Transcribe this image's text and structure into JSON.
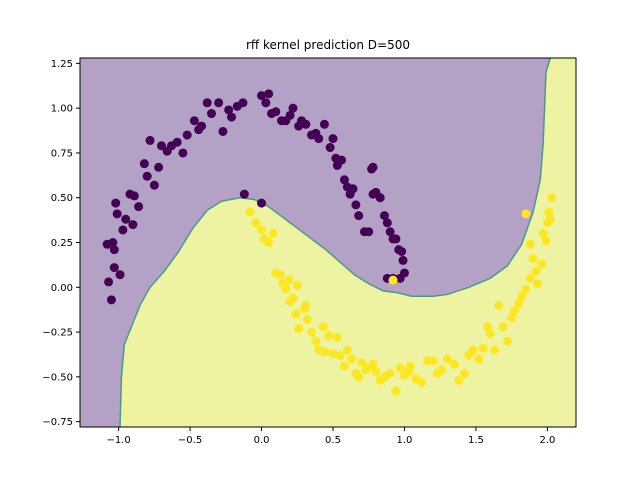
{
  "chart_data": {
    "type": "scatter",
    "title": "rff kernel prediction D=500",
    "xlabel": "",
    "ylabel": "",
    "xlim": [
      -1.27,
      2.2
    ],
    "ylim": [
      -0.78,
      1.28
    ],
    "xticks": [
      -1.0,
      -0.5,
      0.0,
      0.5,
      1.0,
      1.5,
      2.0
    ],
    "xtick_labels": [
      "−1.0",
      "−0.5",
      "0.0",
      "0.5",
      "1.0",
      "1.5",
      "2.0"
    ],
    "yticks": [
      -0.75,
      -0.5,
      -0.25,
      0.0,
      0.25,
      0.5,
      0.75,
      1.0,
      1.25
    ],
    "ytick_labels": [
      "−0.75",
      "−0.50",
      "−0.25",
      "0.00",
      "0.25",
      "0.50",
      "0.75",
      "1.00",
      "1.25"
    ],
    "grid": false,
    "colors": {
      "class_0_point": "#440154",
      "class_1_point": "#fde725",
      "class_0_region": "#b3a2c6",
      "class_1_region": "#edf3a1",
      "boundary": "#4a9a8a"
    },
    "decision_boundary": [
      [
        -0.99,
        -0.78
      ],
      [
        -0.98,
        -0.5
      ],
      [
        -0.96,
        -0.32
      ],
      [
        -0.9,
        -0.2
      ],
      [
        -0.85,
        -0.1
      ],
      [
        -0.78,
        0.0
      ],
      [
        -0.68,
        0.09
      ],
      [
        -0.58,
        0.2
      ],
      [
        -0.48,
        0.33
      ],
      [
        -0.38,
        0.43
      ],
      [
        -0.28,
        0.48
      ],
      [
        -0.15,
        0.5
      ],
      [
        -0.05,
        0.49
      ],
      [
        0.05,
        0.45
      ],
      [
        0.15,
        0.39
      ],
      [
        0.25,
        0.33
      ],
      [
        0.35,
        0.27
      ],
      [
        0.45,
        0.21
      ],
      [
        0.55,
        0.14
      ],
      [
        0.65,
        0.07
      ],
      [
        0.75,
        0.02
      ],
      [
        0.85,
        -0.02
      ],
      [
        0.95,
        -0.03
      ],
      [
        1.05,
        -0.05
      ],
      [
        1.2,
        -0.05
      ],
      [
        1.3,
        -0.04
      ],
      [
        1.45,
        0.0
      ],
      [
        1.6,
        0.05
      ],
      [
        1.72,
        0.12
      ],
      [
        1.82,
        0.24
      ],
      [
        1.9,
        0.42
      ],
      [
        1.95,
        0.6
      ],
      [
        1.97,
        0.8
      ],
      [
        1.98,
        1.0
      ],
      [
        1.99,
        1.2
      ],
      [
        2.02,
        1.28
      ]
    ],
    "series": [
      {
        "class": 0,
        "points": [
          [
            -1.08,
            0.24
          ],
          [
            -1.07,
            0.03
          ],
          [
            -1.05,
            -0.07
          ],
          [
            -1.04,
            0.25
          ],
          [
            -1.03,
            0.21
          ],
          [
            -1.02,
            0.47
          ],
          [
            -1.01,
            0.41
          ],
          [
            -1.03,
            0.11
          ],
          [
            -0.99,
            0.07
          ],
          [
            -0.97,
            0.32
          ],
          [
            -0.95,
            0.38
          ],
          [
            -0.92,
            0.52
          ],
          [
            -0.89,
            0.51
          ],
          [
            -0.9,
            0.35
          ],
          [
            -0.86,
            0.45
          ],
          [
            -0.82,
            0.69
          ],
          [
            -0.8,
            0.62
          ],
          [
            -0.78,
            0.82
          ],
          [
            -0.75,
            0.57
          ],
          [
            -0.72,
            0.67
          ],
          [
            -0.7,
            0.79
          ],
          [
            -0.66,
            0.76
          ],
          [
            -0.63,
            0.79
          ],
          [
            -0.59,
            0.81
          ],
          [
            -0.55,
            0.75
          ],
          [
            -0.52,
            0.85
          ],
          [
            -0.47,
            0.93
          ],
          [
            -0.44,
            0.88
          ],
          [
            -0.42,
            0.9
          ],
          [
            -0.38,
            1.03
          ],
          [
            -0.35,
            0.97
          ],
          [
            -0.3,
            1.03
          ],
          [
            -0.27,
            0.87
          ],
          [
            -0.23,
            0.99
          ],
          [
            -0.21,
            0.95
          ],
          [
            -0.17,
            1.01
          ],
          [
            -0.13,
            1.03
          ],
          [
            -0.12,
            0.52
          ],
          [
            0.0,
            1.07
          ],
          [
            0.03,
            1.03
          ],
          [
            0.05,
            1.08
          ],
          [
            0.07,
            0.97
          ],
          [
            0.1,
            0.98
          ],
          [
            0.14,
            0.93
          ],
          [
            0.17,
            0.93
          ],
          [
            0.2,
            0.96
          ],
          [
            0.22,
            1.0
          ],
          [
            0.26,
            0.9
          ],
          [
            0.28,
            0.93
          ],
          [
            0.31,
            0.91
          ],
          [
            0.35,
            0.85
          ],
          [
            0.38,
            0.86
          ],
          [
            0.4,
            0.83
          ],
          [
            0.44,
            0.91
          ],
          [
            0.48,
            0.78
          ],
          [
            0.5,
            0.83
          ],
          [
            0.52,
            0.72
          ],
          [
            0.53,
            0.68
          ],
          [
            0.56,
            0.71
          ],
          [
            0.58,
            0.6
          ],
          [
            0.6,
            0.56
          ],
          [
            0.62,
            0.52
          ],
          [
            0.64,
            0.55
          ],
          [
            0.66,
            0.46
          ],
          [
            0.68,
            0.4
          ],
          [
            0.72,
            0.31
          ],
          [
            0.75,
            0.31
          ],
          [
            0.78,
            0.52
          ],
          [
            0.8,
            0.53
          ],
          [
            0.83,
            0.5
          ],
          [
            0.86,
            0.4
          ],
          [
            0.88,
            0.36
          ],
          [
            0.9,
            0.31
          ],
          [
            0.92,
            0.27
          ],
          [
            0.94,
            0.27
          ],
          [
            0.96,
            0.21
          ],
          [
            0.98,
            0.2
          ],
          [
            0.99,
            0.15
          ],
          [
            1.0,
            0.08
          ],
          [
            0.97,
            0.05
          ],
          [
            0.92,
            0.05
          ],
          [
            0.88,
            0.05
          ],
          [
            0.0,
            0.47
          ],
          [
            0.78,
            0.67
          ],
          [
            0.77,
            0.66
          ]
        ]
      },
      {
        "class": 1,
        "points": [
          [
            -0.08,
            0.42
          ],
          [
            -0.04,
            0.36
          ],
          [
            0.0,
            0.32
          ],
          [
            0.02,
            0.27
          ],
          [
            0.05,
            0.25
          ],
          [
            0.08,
            0.3
          ],
          [
            0.1,
            0.08
          ],
          [
            0.13,
            0.07
          ],
          [
            0.15,
            0.02
          ],
          [
            0.17,
            -0.01
          ],
          [
            0.19,
            0.04
          ],
          [
            0.2,
            -0.08
          ],
          [
            0.22,
            -0.06
          ],
          [
            0.25,
            0.01
          ],
          [
            0.24,
            -0.15
          ],
          [
            0.26,
            -0.23
          ],
          [
            0.3,
            -0.12
          ],
          [
            0.32,
            -0.18
          ],
          [
            0.35,
            -0.25
          ],
          [
            0.38,
            -0.3
          ],
          [
            0.4,
            -0.35
          ],
          [
            0.43,
            -0.22
          ],
          [
            0.47,
            -0.27
          ],
          [
            0.5,
            -0.37
          ],
          [
            0.53,
            -0.28
          ],
          [
            0.55,
            -0.38
          ],
          [
            0.58,
            -0.44
          ],
          [
            0.6,
            -0.35
          ],
          [
            0.63,
            -0.4
          ],
          [
            0.66,
            -0.48
          ],
          [
            0.68,
            -0.5
          ],
          [
            0.7,
            -0.42
          ],
          [
            0.74,
            -0.45
          ],
          [
            0.78,
            -0.43
          ],
          [
            0.8,
            -0.47
          ],
          [
            0.83,
            -0.52
          ],
          [
            0.86,
            -0.5
          ],
          [
            0.9,
            -0.48
          ],
          [
            0.94,
            -0.58
          ],
          [
            0.97,
            -0.45
          ],
          [
            1.0,
            -0.49
          ],
          [
            1.04,
            -0.44
          ],
          [
            1.08,
            -0.51
          ],
          [
            1.12,
            -0.53
          ],
          [
            1.16,
            -0.41
          ],
          [
            1.2,
            -0.41
          ],
          [
            1.23,
            -0.48
          ],
          [
            1.26,
            -0.46
          ],
          [
            1.3,
            -0.4
          ],
          [
            1.35,
            -0.43
          ],
          [
            1.38,
            -0.52
          ],
          [
            1.42,
            -0.48
          ],
          [
            1.45,
            -0.38
          ],
          [
            1.48,
            -0.35
          ],
          [
            1.52,
            -0.4
          ],
          [
            1.55,
            -0.34
          ],
          [
            1.58,
            -0.22
          ],
          [
            1.6,
            -0.26
          ],
          [
            1.63,
            -0.35
          ],
          [
            1.66,
            -0.1
          ],
          [
            1.69,
            -0.22
          ],
          [
            1.72,
            -0.3
          ],
          [
            1.75,
            -0.17
          ],
          [
            1.77,
            -0.13
          ],
          [
            1.8,
            -0.09
          ],
          [
            1.82,
            -0.05
          ],
          [
            1.85,
            -0.01
          ],
          [
            1.88,
            0.05
          ],
          [
            1.9,
            0.16
          ],
          [
            1.93,
            0.02
          ],
          [
            1.96,
            0.13
          ],
          [
            1.97,
            0.3
          ],
          [
            1.99,
            0.26
          ],
          [
            2.0,
            0.36
          ],
          [
            2.01,
            0.42
          ],
          [
            2.02,
            0.38
          ],
          [
            2.03,
            0.5
          ],
          [
            1.85,
            0.41
          ],
          [
            1.88,
            0.24
          ],
          [
            1.92,
            0.09
          ],
          [
            0.73,
            -0.46
          ],
          [
            1.03,
            -0.47
          ],
          [
            0.31,
            -0.1
          ],
          [
            0.44,
            -0.36
          ],
          [
            0.92,
            0.04
          ]
        ]
      }
    ]
  }
}
